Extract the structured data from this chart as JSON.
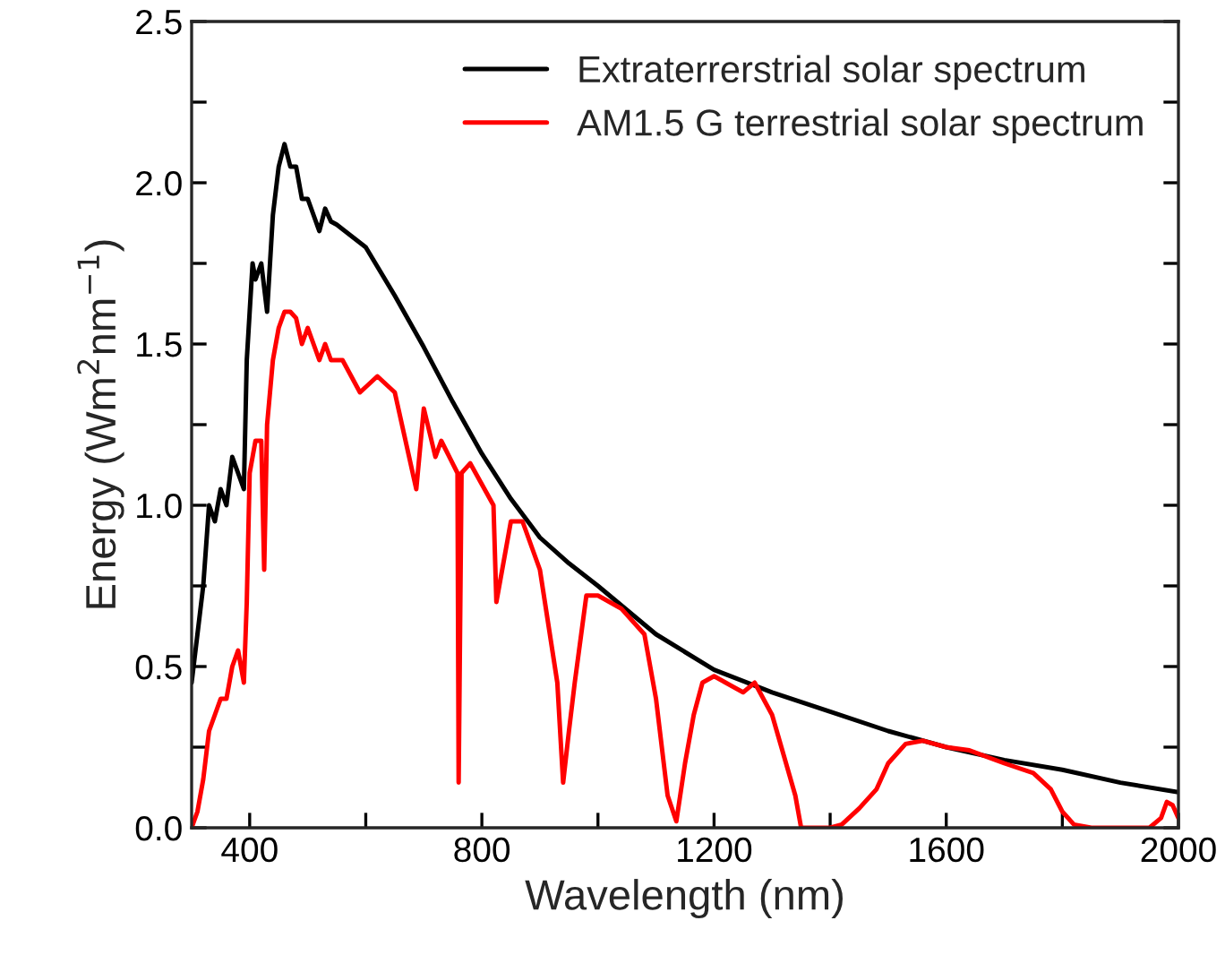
{
  "chart_data": {
    "type": "line",
    "xlabel": "Wavelength (nm)",
    "ylabel": "Energy (Wm$^{2}$nm$^{−1}$)",
    "xlim": [
      300,
      2000
    ],
    "ylim": [
      0,
      2.5
    ],
    "xticks": [
      400,
      {
        "value": 600,
        "label": null
      },
      800,
      {
        "value": 1000,
        "label": null
      },
      1200,
      {
        "value": 1400,
        "label": null
      },
      1600,
      {
        "value": 1800,
        "label": null
      },
      2000
    ],
    "yticks": [
      {
        "value": 0,
        "label": "0.0"
      },
      {
        "value": 0.25,
        "label": null
      },
      {
        "value": 0.5,
        "label": "0.5"
      },
      {
        "value": 0.75,
        "label": null
      },
      {
        "value": 1.0,
        "label": "1.0"
      },
      {
        "value": 1.25,
        "label": null
      },
      {
        "value": 1.5,
        "label": "1.5"
      },
      {
        "value": 1.75,
        "label": null
      },
      {
        "value": 2.0,
        "label": "2.0"
      },
      {
        "value": 2.25,
        "label": null
      },
      {
        "value": 2.5,
        "label": "2.5"
      }
    ],
    "legend": "top right",
    "grid": false,
    "marker": "none",
    "line_style": "solid",
    "series": [
      {
        "name": "Extraterrerstrial solar spectrum",
        "color": "#000000",
        "x": [
          300,
          310,
          320,
          330,
          340,
          350,
          360,
          370,
          380,
          390,
          395,
          400,
          405,
          410,
          420,
          430,
          440,
          450,
          460,
          470,
          480,
          490,
          500,
          510,
          520,
          530,
          540,
          550,
          600,
          650,
          700,
          750,
          800,
          850,
          900,
          950,
          1000,
          1100,
          1200,
          1300,
          1400,
          1500,
          1600,
          1700,
          1800,
          1900,
          2000
        ],
        "values": [
          0.45,
          0.6,
          0.75,
          1.0,
          0.95,
          1.05,
          1.0,
          1.15,
          1.1,
          1.05,
          1.45,
          1.6,
          1.75,
          1.7,
          1.75,
          1.6,
          1.9,
          2.05,
          2.12,
          2.05,
          2.05,
          1.95,
          1.95,
          1.9,
          1.85,
          1.92,
          1.88,
          1.87,
          1.8,
          1.65,
          1.49,
          1.32,
          1.16,
          1.02,
          0.9,
          0.82,
          0.75,
          0.6,
          0.49,
          0.42,
          0.36,
          0.3,
          0.25,
          0.21,
          0.18,
          0.14,
          0.11
        ]
      },
      {
        "name": "AM1.5 G terrestrial solar spectrum",
        "color": "#ff0000",
        "x": [
          300,
          310,
          320,
          330,
          340,
          350,
          360,
          370,
          380,
          390,
          395,
          400,
          410,
          420,
          425,
          430,
          440,
          450,
          460,
          470,
          480,
          490,
          500,
          510,
          520,
          530,
          540,
          560,
          590,
          620,
          650,
          687,
          700,
          720,
          730,
          758,
          760,
          765,
          780,
          820,
          825,
          850,
          870,
          900,
          930,
          940,
          950,
          960,
          980,
          1000,
          1040,
          1080,
          1100,
          1120,
          1135,
          1150,
          1165,
          1180,
          1200,
          1220,
          1250,
          1270,
          1300,
          1340,
          1350,
          1400,
          1420,
          1450,
          1480,
          1500,
          1530,
          1560,
          1600,
          1640,
          1700,
          1750,
          1780,
          1800,
          1820,
          1850,
          1950,
          1970,
          1980,
          1990,
          2000
        ],
        "values": [
          0,
          0.05,
          0.15,
          0.3,
          0.35,
          0.4,
          0.4,
          0.5,
          0.55,
          0.45,
          0.7,
          1.1,
          1.2,
          1.2,
          0.8,
          1.25,
          1.45,
          1.55,
          1.6,
          1.6,
          1.58,
          1.5,
          1.55,
          1.5,
          1.45,
          1.5,
          1.45,
          1.45,
          1.35,
          1.4,
          1.35,
          1.05,
          1.3,
          1.15,
          1.2,
          1.1,
          0.14,
          1.1,
          1.13,
          1.0,
          0.7,
          0.95,
          0.95,
          0.8,
          0.45,
          0.14,
          0.3,
          0.45,
          0.72,
          0.72,
          0.68,
          0.6,
          0.4,
          0.1,
          0.02,
          0.2,
          0.35,
          0.45,
          0.47,
          0.45,
          0.42,
          0.45,
          0.35,
          0.1,
          0,
          0,
          0.01,
          0.06,
          0.12,
          0.2,
          0.26,
          0.27,
          0.25,
          0.24,
          0.2,
          0.17,
          0.12,
          0.05,
          0.01,
          0,
          0,
          0.03,
          0.08,
          0.07,
          0.03
        ]
      }
    ]
  }
}
